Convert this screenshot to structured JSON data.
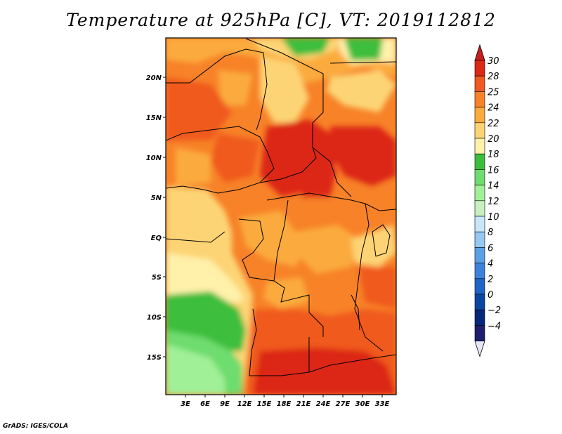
{
  "title": "Temperature at 925hPa [C], VT: 2019112812",
  "credit": "GrADS: IGES/COLA",
  "map": {
    "lat_labels": [
      "20N",
      "15N",
      "10N",
      "5N",
      "EQ",
      "5S",
      "10S",
      "15S"
    ],
    "lon_labels": [
      "3E",
      "6E",
      "9E",
      "12E",
      "15E",
      "18E",
      "21E",
      "24E",
      "27E",
      "30E",
      "33E"
    ]
  },
  "colorbar": {
    "labels": [
      "30",
      "28",
      "25",
      "24",
      "22",
      "20",
      "18",
      "16",
      "14",
      "12",
      "10",
      "8",
      "6",
      "4",
      "2",
      "0",
      "−2",
      "−4"
    ],
    "colors": [
      "#dc2814",
      "#f05a1e",
      "#f78228",
      "#fbab3c",
      "#fdd474",
      "#fff0aa",
      "#3cbe3c",
      "#6edc6e",
      "#a0f098",
      "#c8f0c0",
      "#c8e6fa",
      "#96c8f0",
      "#5aa0e6",
      "#3c82dc",
      "#1e64c8",
      "#0a46a0",
      "#06287a",
      "#1e1e6e"
    ],
    "top_cap_color": "#c81e1e",
    "bottom_cap_color": "#e6e6fa"
  }
}
